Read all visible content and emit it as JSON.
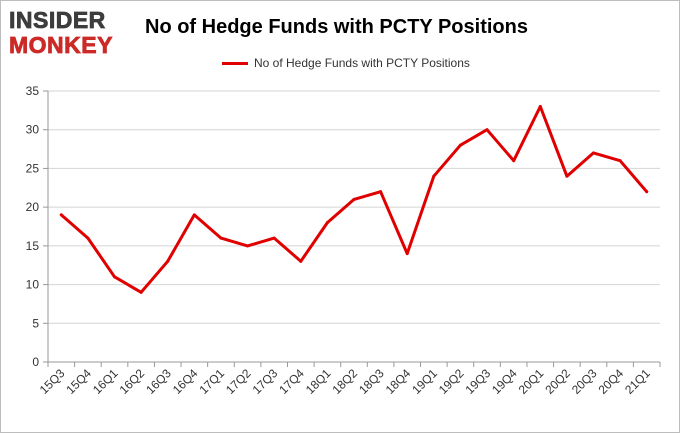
{
  "logo": {
    "line1": "INSIDER",
    "line2": "MONKEY"
  },
  "colors": {
    "series": "#e00000",
    "grid": "#d4d4d4",
    "axis": "#999999",
    "logo_dark": "#3d3d3d",
    "logo_red": "#cc2a27"
  },
  "chart_data": {
    "type": "line",
    "title": "No of Hedge Funds with PCTY Positions",
    "xlabel": "",
    "ylabel": "",
    "legend_position": "top",
    "grid": true,
    "ylim": [
      0,
      35
    ],
    "yticks": [
      0,
      5,
      10,
      15,
      20,
      25,
      30,
      35
    ],
    "categories": [
      "15Q3",
      "15Q4",
      "16Q1",
      "16Q2",
      "16Q3",
      "16Q4",
      "17Q1",
      "17Q2",
      "17Q3",
      "17Q4",
      "18Q1",
      "18Q2",
      "18Q3",
      "18Q4",
      "19Q1",
      "19Q2",
      "19Q3",
      "19Q4",
      "20Q1",
      "20Q2",
      "20Q3",
      "20Q4",
      "21Q1"
    ],
    "series": [
      {
        "name": "No of Hedge Funds with PCTY Positions",
        "values": [
          19,
          16,
          11,
          9,
          13,
          19,
          16,
          15,
          16,
          13,
          18,
          21,
          22,
          14,
          24,
          28,
          30,
          26,
          33,
          24,
          27,
          26,
          22
        ]
      }
    ]
  }
}
